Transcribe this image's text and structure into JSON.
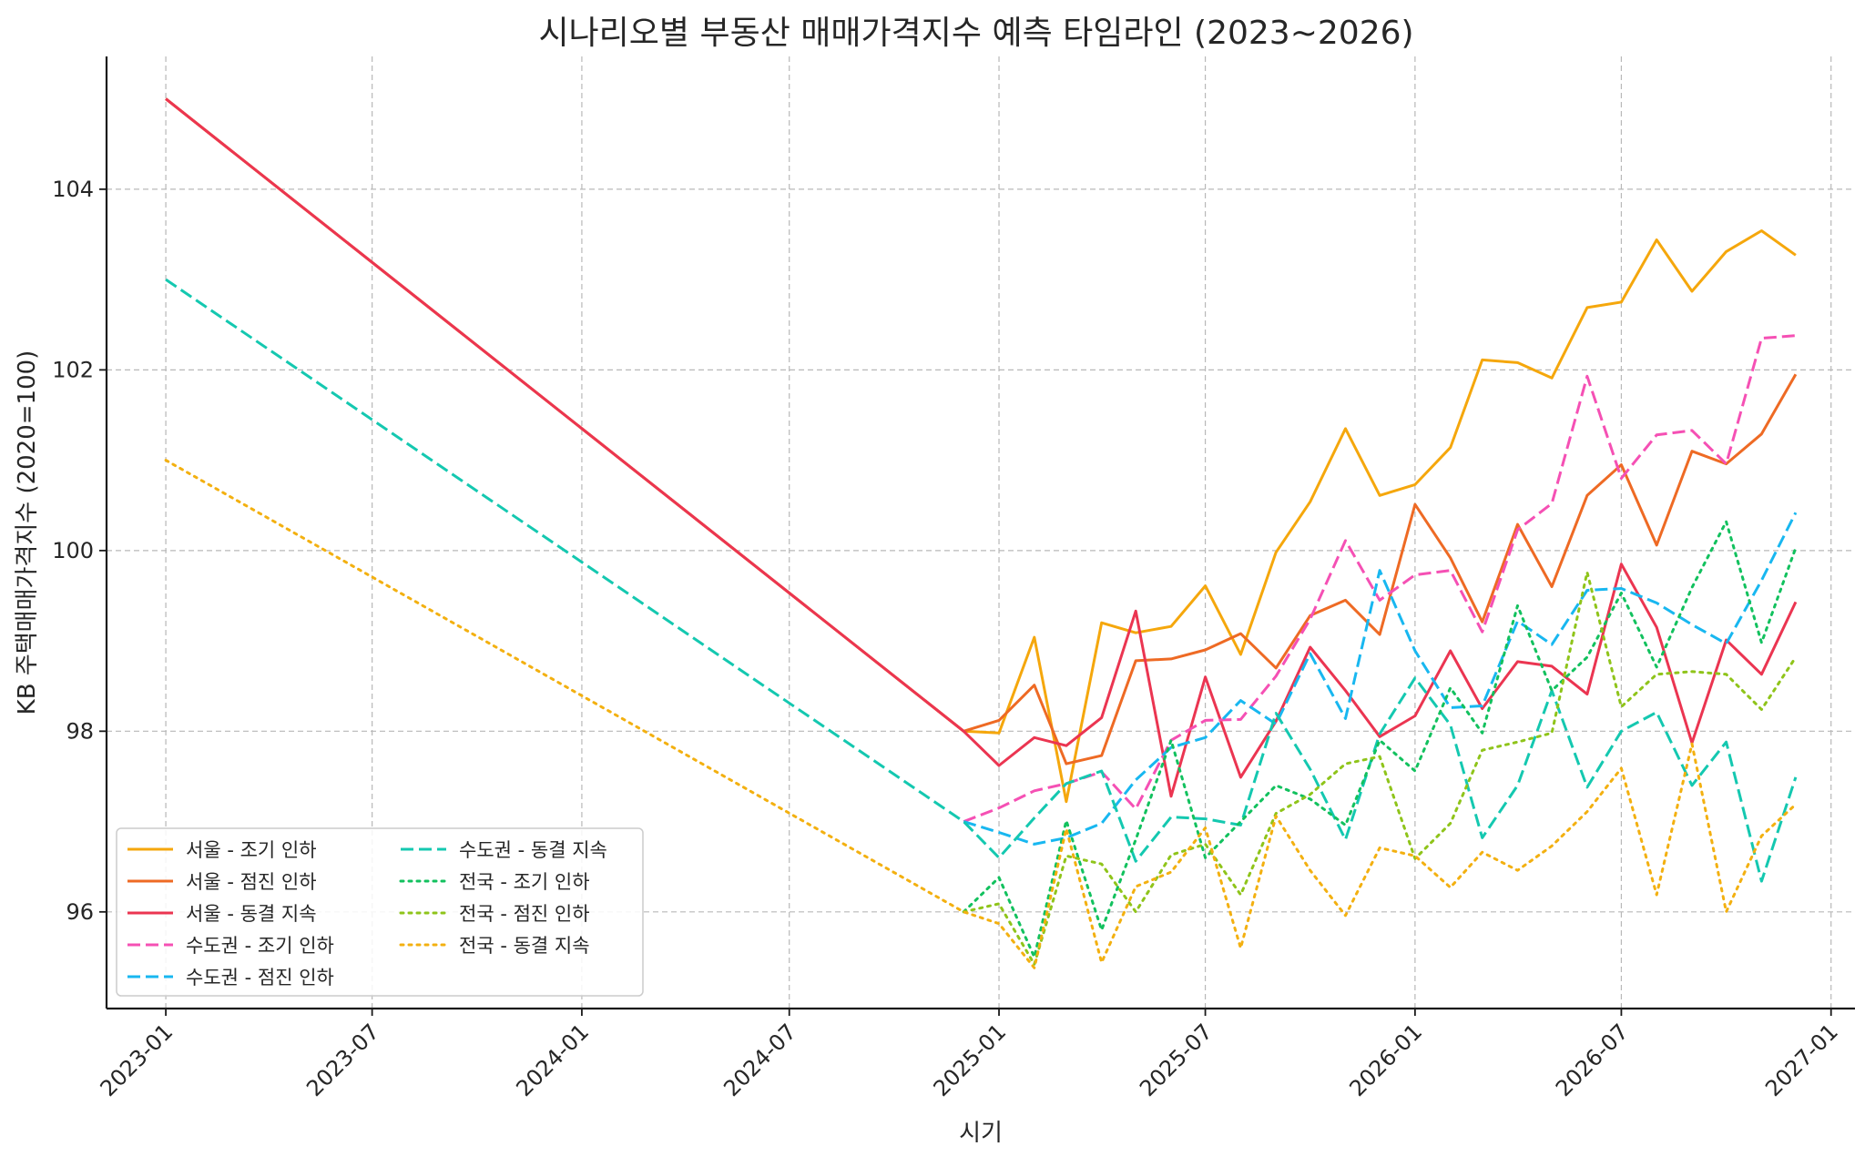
{
  "chart_data": {
    "type": "line",
    "title": "시나리오별 부동산 매매가격지수 예측 타임라인 (2023~2026)",
    "xlabel": "시기",
    "ylabel": "KB 주택매매가격지수 (2020=100)",
    "xlim": [
      "2022-11-10",
      "2027-01-22"
    ],
    "ylim": [
      94.93,
      105.47
    ],
    "x_ticks": [
      "2023-01",
      "2023-07",
      "2024-01",
      "2024-07",
      "2025-01",
      "2025-07",
      "2026-01",
      "2026-07",
      "2027-01"
    ],
    "y_ticks": [
      96,
      98,
      100,
      102,
      104
    ],
    "grid": true,
    "legend_position": "lower-left",
    "x_dates_2025_2026": [
      "2025-01",
      "2025-02",
      "2025-03",
      "2025-04",
      "2025-05",
      "2025-06",
      "2025-07",
      "2025-08",
      "2025-09",
      "2025-10",
      "2025-11",
      "2025-12",
      "2026-01",
      "2026-02",
      "2026-03",
      "2026-04",
      "2026-05",
      "2026-06",
      "2026-07",
      "2026-08",
      "2026-09",
      "2026-10",
      "2026-11",
      "2026-12"
    ],
    "series": [
      {
        "name": "서울 - 조기 인하",
        "color": "#F5A70C",
        "dash": "solid",
        "points": [
          [
            "2023-01",
            105
          ],
          [
            "2024-12",
            98
          ],
          [
            "2025-01",
            97.98
          ],
          [
            "2025-02",
            99.04
          ],
          [
            "2025-03",
            97.22
          ],
          [
            "2025-04",
            99.2
          ],
          [
            "2025-05",
            99.09
          ],
          [
            "2025-06",
            99.16
          ],
          [
            "2025-07",
            99.61
          ],
          [
            "2025-08",
            98.85
          ],
          [
            "2025-09",
            99.98
          ],
          [
            "2025-10",
            100.54
          ],
          [
            "2025-11",
            101.35
          ],
          [
            "2025-12",
            100.61
          ],
          [
            "2026-01",
            100.73
          ],
          [
            "2026-02",
            101.14
          ],
          [
            "2026-03",
            102.11
          ],
          [
            "2026-04",
            102.08
          ],
          [
            "2026-05",
            101.91
          ],
          [
            "2026-06",
            102.69
          ],
          [
            "2026-07",
            102.75
          ],
          [
            "2026-08",
            103.44
          ],
          [
            "2026-09",
            102.87
          ],
          [
            "2026-10",
            103.31
          ],
          [
            "2026-11",
            103.54
          ],
          [
            "2026-12",
            103.27
          ]
        ]
      },
      {
        "name": "서울 - 점진 인하",
        "color": "#EE6A24",
        "dash": "solid",
        "points": [
          [
            "2023-01",
            105
          ],
          [
            "2024-12",
            98
          ],
          [
            "2025-01",
            98.12
          ],
          [
            "2025-02",
            98.51
          ],
          [
            "2025-03",
            97.64
          ],
          [
            "2025-04",
            97.73
          ],
          [
            "2025-05",
            98.78
          ],
          [
            "2025-06",
            98.8
          ],
          [
            "2025-07",
            98.9
          ],
          [
            "2025-08",
            99.08
          ],
          [
            "2025-09",
            98.7
          ],
          [
            "2025-10",
            99.28
          ],
          [
            "2025-11",
            99.45
          ],
          [
            "2025-12",
            99.07
          ],
          [
            "2026-01",
            100.51
          ],
          [
            "2026-02",
            99.92
          ],
          [
            "2026-03",
            99.21
          ],
          [
            "2026-04",
            100.29
          ],
          [
            "2026-05",
            99.6
          ],
          [
            "2026-06",
            100.61
          ],
          [
            "2026-07",
            100.95
          ],
          [
            "2026-08",
            100.06
          ],
          [
            "2026-09",
            101.1
          ],
          [
            "2026-10",
            100.96
          ],
          [
            "2026-11",
            101.29
          ],
          [
            "2026-12",
            101.95
          ]
        ]
      },
      {
        "name": "서울 - 동결 지속",
        "color": "#EB3551",
        "dash": "solid",
        "points": [
          [
            "2023-01",
            105
          ],
          [
            "2024-12",
            98
          ],
          [
            "2025-01",
            97.62
          ],
          [
            "2025-02",
            97.93
          ],
          [
            "2025-03",
            97.84
          ],
          [
            "2025-04",
            98.15
          ],
          [
            "2025-05",
            99.33
          ],
          [
            "2025-06",
            97.28
          ],
          [
            "2025-07",
            98.6
          ],
          [
            "2025-08",
            97.49
          ],
          [
            "2025-09",
            98.11
          ],
          [
            "2025-10",
            98.93
          ],
          [
            "2025-11",
            98.45
          ],
          [
            "2025-12",
            97.94
          ],
          [
            "2026-01",
            98.17
          ],
          [
            "2026-02",
            98.89
          ],
          [
            "2026-03",
            98.25
          ],
          [
            "2026-04",
            98.77
          ],
          [
            "2026-05",
            98.72
          ],
          [
            "2026-06",
            98.41
          ],
          [
            "2026-07",
            99.85
          ],
          [
            "2026-08",
            99.15
          ],
          [
            "2026-09",
            97.87
          ],
          [
            "2026-10",
            99.01
          ],
          [
            "2026-11",
            98.63
          ],
          [
            "2026-12",
            99.43
          ]
        ]
      },
      {
        "name": "수도권 - 조기 인하",
        "color": "#F550B4",
        "dash": "dashed",
        "points": [
          [
            "2024-12",
            97
          ],
          [
            "2025-01",
            97.15
          ],
          [
            "2025-02",
            97.34
          ],
          [
            "2025-03",
            97.42
          ],
          [
            "2025-04",
            97.55
          ],
          [
            "2025-05",
            97.14
          ],
          [
            "2025-06",
            97.9
          ],
          [
            "2025-07",
            98.12
          ],
          [
            "2025-08",
            98.13
          ],
          [
            "2025-09",
            98.61
          ],
          [
            "2025-10",
            99.24
          ],
          [
            "2025-11",
            100.11
          ],
          [
            "2025-12",
            99.45
          ],
          [
            "2026-01",
            99.73
          ],
          [
            "2026-02",
            99.78
          ],
          [
            "2026-03",
            99.1
          ],
          [
            "2026-04",
            100.23
          ],
          [
            "2026-05",
            100.52
          ],
          [
            "2026-06",
            101.93
          ],
          [
            "2026-07",
            100.8
          ],
          [
            "2026-08",
            101.28
          ],
          [
            "2026-09",
            101.33
          ],
          [
            "2026-10",
            100.96
          ],
          [
            "2026-11",
            102.35
          ],
          [
            "2026-12",
            102.38
          ]
        ]
      },
      {
        "name": "수도권 - 점진 인하",
        "color": "#18B7F0",
        "dash": "dashed",
        "points": [
          [
            "2024-12",
            97
          ],
          [
            "2025-01",
            96.88
          ],
          [
            "2025-02",
            96.75
          ],
          [
            "2025-03",
            96.82
          ],
          [
            "2025-04",
            96.98
          ],
          [
            "2025-05",
            97.46
          ],
          [
            "2025-06",
            97.82
          ],
          [
            "2025-07",
            97.93
          ],
          [
            "2025-08",
            98.34
          ],
          [
            "2025-09",
            98.08
          ],
          [
            "2025-10",
            98.86
          ],
          [
            "2025-11",
            98.14
          ],
          [
            "2025-12",
            99.78
          ],
          [
            "2026-01",
            98.89
          ],
          [
            "2026-02",
            98.26
          ],
          [
            "2026-03",
            98.28
          ],
          [
            "2026-04",
            99.22
          ],
          [
            "2026-05",
            98.96
          ],
          [
            "2026-06",
            99.56
          ],
          [
            "2026-07",
            99.58
          ],
          [
            "2026-08",
            99.42
          ],
          [
            "2026-09",
            99.18
          ],
          [
            "2026-10",
            98.97
          ],
          [
            "2026-11",
            99.67
          ],
          [
            "2026-12",
            100.42
          ]
        ]
      },
      {
        "name": "수도권 - 동결 지속",
        "color": "#14C8B0",
        "dash": "dashed",
        "points": [
          [
            "2023-01",
            103
          ],
          [
            "2024-12",
            97
          ],
          [
            "2025-01",
            96.6
          ],
          [
            "2025-02",
            97.04
          ],
          [
            "2025-03",
            97.42
          ],
          [
            "2025-04",
            97.56
          ],
          [
            "2025-05",
            96.56
          ],
          [
            "2025-06",
            97.05
          ],
          [
            "2025-07",
            97.03
          ],
          [
            "2025-08",
            96.96
          ],
          [
            "2025-09",
            98.2
          ],
          [
            "2025-10",
            97.58
          ],
          [
            "2025-11",
            96.8
          ],
          [
            "2025-12",
            97.97
          ],
          [
            "2026-01",
            98.59
          ],
          [
            "2026-02",
            98.07
          ],
          [
            "2026-03",
            96.82
          ],
          [
            "2026-04",
            97.4
          ],
          [
            "2026-05",
            98.45
          ],
          [
            "2026-06",
            97.38
          ],
          [
            "2026-07",
            98.0
          ],
          [
            "2026-08",
            98.21
          ],
          [
            "2026-09",
            97.4
          ],
          [
            "2026-10",
            97.88
          ],
          [
            "2026-11",
            96.34
          ],
          [
            "2026-12",
            97.49
          ]
        ]
      },
      {
        "name": "전국 - 조기 인하",
        "color": "#12C15E",
        "dash": "dotted",
        "points": [
          [
            "2024-12",
            96
          ],
          [
            "2025-01",
            96.38
          ],
          [
            "2025-02",
            95.5
          ],
          [
            "2025-03",
            97.01
          ],
          [
            "2025-04",
            95.8
          ],
          [
            "2025-05",
            96.8
          ],
          [
            "2025-06",
            97.9
          ],
          [
            "2025-07",
            96.6
          ],
          [
            "2025-08",
            97.0
          ],
          [
            "2025-09",
            97.4
          ],
          [
            "2025-10",
            97.25
          ],
          [
            "2025-11",
            96.96
          ],
          [
            "2025-12",
            97.9
          ],
          [
            "2026-01",
            97.56
          ],
          [
            "2026-02",
            98.48
          ],
          [
            "2026-03",
            97.98
          ],
          [
            "2026-04",
            99.39
          ],
          [
            "2026-05",
            98.45
          ],
          [
            "2026-06",
            98.82
          ],
          [
            "2026-07",
            99.53
          ],
          [
            "2026-08",
            98.71
          ],
          [
            "2026-09",
            99.59
          ],
          [
            "2026-10",
            100.32
          ],
          [
            "2026-11",
            98.98
          ],
          [
            "2026-12",
            100.03
          ]
        ]
      },
      {
        "name": "전국 - 점진 인하",
        "color": "#8FC41A",
        "dash": "dotted",
        "points": [
          [
            "2024-12",
            96
          ],
          [
            "2025-01",
            96.09
          ],
          [
            "2025-02",
            95.42
          ],
          [
            "2025-03",
            96.62
          ],
          [
            "2025-04",
            96.53
          ],
          [
            "2025-05",
            96.0
          ],
          [
            "2025-06",
            96.63
          ],
          [
            "2025-07",
            96.75
          ],
          [
            "2025-08",
            96.19
          ],
          [
            "2025-09",
            97.09
          ],
          [
            "2025-10",
            97.3
          ],
          [
            "2025-11",
            97.64
          ],
          [
            "2025-12",
            97.72
          ],
          [
            "2026-01",
            96.59
          ],
          [
            "2026-02",
            96.98
          ],
          [
            "2026-03",
            97.79
          ],
          [
            "2026-04",
            97.88
          ],
          [
            "2026-05",
            97.98
          ],
          [
            "2026-06",
            99.76
          ],
          [
            "2026-07",
            98.27
          ],
          [
            "2026-08",
            98.63
          ],
          [
            "2026-09",
            98.66
          ],
          [
            "2026-10",
            98.63
          ],
          [
            "2026-11",
            98.24
          ],
          [
            "2026-12",
            98.82
          ]
        ]
      },
      {
        "name": "전국 - 동결 지속",
        "color": "#F3B010",
        "dash": "dotted",
        "points": [
          [
            "2023-01",
            101
          ],
          [
            "2024-12",
            96
          ],
          [
            "2025-01",
            95.87
          ],
          [
            "2025-02",
            95.38
          ],
          [
            "2025-03",
            96.92
          ],
          [
            "2025-04",
            95.44
          ],
          [
            "2025-05",
            96.28
          ],
          [
            "2025-06",
            96.44
          ],
          [
            "2025-07",
            96.93
          ],
          [
            "2025-08",
            95.6
          ],
          [
            "2025-09",
            97.06
          ],
          [
            "2025-10",
            96.46
          ],
          [
            "2025-11",
            95.96
          ],
          [
            "2025-12",
            96.71
          ],
          [
            "2026-01",
            96.62
          ],
          [
            "2026-02",
            96.27
          ],
          [
            "2026-03",
            96.66
          ],
          [
            "2026-04",
            96.46
          ],
          [
            "2026-05",
            96.73
          ],
          [
            "2026-06",
            97.11
          ],
          [
            "2026-07",
            97.59
          ],
          [
            "2026-08",
            96.19
          ],
          [
            "2026-09",
            97.86
          ],
          [
            "2026-10",
            96.0
          ],
          [
            "2026-11",
            96.84
          ],
          [
            "2026-12",
            97.19
          ]
        ]
      }
    ]
  }
}
